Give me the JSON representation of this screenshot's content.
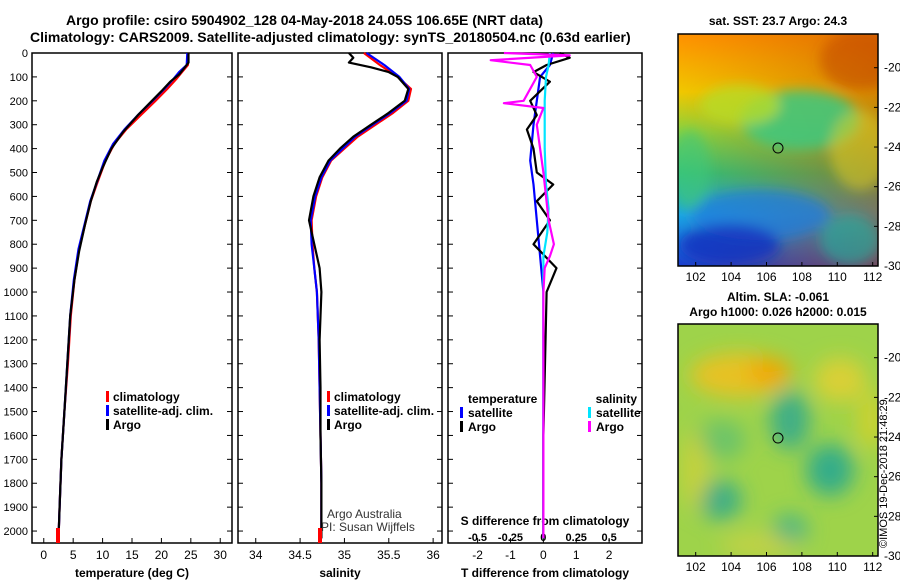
{
  "titles": {
    "line1": "Argo profile: csiro 5904902_128 04-May-2018 24.05S 106.65E (NRT data)",
    "line2": "Climatology: CARS2009. Satellite-adjusted climatology: synTS_20180504.nc (0.63d earlier)"
  },
  "colors": {
    "climatology": "#ff0000",
    "satellite": "#0000ff",
    "argo": "#000000",
    "satellite_salt": "#00e5ff",
    "argo_salt": "#ff00ff"
  },
  "depth_axis": {
    "min": 0,
    "max": 2050,
    "ticks": [
      0,
      100,
      200,
      300,
      400,
      500,
      600,
      700,
      800,
      900,
      1000,
      1100,
      1200,
      1300,
      1400,
      1500,
      1600,
      1700,
      1800,
      1900,
      2000
    ]
  },
  "chart_data": [
    {
      "type": "line",
      "name": "temperature-profile",
      "xlabel": "temperature (deg C)",
      "ylabel": "depth",
      "xlim": [
        -2,
        32
      ],
      "ylim": [
        2050,
        0
      ],
      "xticks": [
        "0",
        "5",
        "10",
        "15",
        "20",
        "25",
        "30"
      ],
      "xtick_values": [
        0,
        5,
        10,
        15,
        20,
        25,
        30
      ],
      "legend": [
        "climatology",
        "satellite-adj. clim.",
        "Argo"
      ],
      "series": [
        {
          "name": "climatology",
          "color": "#ff0000",
          "points": [
            [
              24.6,
              0
            ],
            [
              24.5,
              50
            ],
            [
              23.5,
              80
            ],
            [
              22.5,
              110
            ],
            [
              21,
              150
            ],
            [
              19,
              200
            ],
            [
              16.5,
              260
            ],
            [
              14,
              320
            ],
            [
              12,
              380
            ],
            [
              10.5,
              450
            ],
            [
              9,
              550
            ],
            [
              8,
              620
            ],
            [
              7,
              720
            ],
            [
              6,
              820
            ],
            [
              5.2,
              950
            ],
            [
              4.6,
              1100
            ],
            [
              4.1,
              1300
            ],
            [
              3.5,
              1500
            ],
            [
              3,
              1700
            ],
            [
              2.7,
              1900
            ],
            [
              2.5,
              2030
            ]
          ]
        },
        {
          "name": "satellite-adj. clim.",
          "color": "#0000ff",
          "points": [
            [
              24.4,
              0
            ],
            [
              24.3,
              50
            ],
            [
              23,
              80
            ],
            [
              22,
              110
            ],
            [
              20.5,
              150
            ],
            [
              18.5,
              200
            ],
            [
              16,
              260
            ],
            [
              13.7,
              320
            ],
            [
              11.8,
              380
            ],
            [
              10.3,
              450
            ],
            [
              8.9,
              550
            ],
            [
              7.9,
              620
            ],
            [
              6.9,
              720
            ],
            [
              5.9,
              820
            ],
            [
              5.1,
              950
            ],
            [
              4.5,
              1100
            ],
            [
              4,
              1300
            ],
            [
              3.5,
              1500
            ],
            [
              3,
              1700
            ],
            [
              2.7,
              1900
            ],
            [
              2.5,
              2030
            ]
          ]
        },
        {
          "name": "Argo",
          "color": "#000000",
          "points": [
            [
              24.6,
              0
            ],
            [
              24.6,
              40
            ],
            [
              24,
              60
            ],
            [
              23,
              90
            ],
            [
              21.5,
              120
            ],
            [
              20,
              160
            ],
            [
              18,
              210
            ],
            [
              16,
              260
            ],
            [
              13.5,
              330
            ],
            [
              11.5,
              400
            ],
            [
              10,
              480
            ],
            [
              9,
              540
            ],
            [
              8,
              620
            ],
            [
              7,
              720
            ],
            [
              6,
              830
            ],
            [
              5.2,
              950
            ],
            [
              4.5,
              1100
            ],
            [
              4,
              1300
            ],
            [
              3.5,
              1500
            ],
            [
              3,
              1700
            ],
            [
              2.7,
              1900
            ],
            [
              2.5,
              2030
            ]
          ]
        }
      ]
    },
    {
      "type": "line",
      "name": "salinity-profile",
      "xlabel": "salinity",
      "ylabel": "depth",
      "xlim": [
        33.8,
        36.1
      ],
      "ylim": [
        2050,
        0
      ],
      "xticks": [
        "34",
        "34.5",
        "35",
        "35.5",
        "36"
      ],
      "xtick_values": [
        34,
        34.5,
        35,
        35.5,
        36
      ],
      "legend": [
        "climatology",
        "satellite-adj. clim.",
        "Argo"
      ],
      "series": [
        {
          "name": "climatology",
          "color": "#ff0000",
          "points": [
            [
              35.22,
              0
            ],
            [
              35.4,
              50
            ],
            [
              35.6,
              100
            ],
            [
              35.75,
              150
            ],
            [
              35.72,
              200
            ],
            [
              35.55,
              250
            ],
            [
              35.35,
              300
            ],
            [
              35.15,
              350
            ],
            [
              35,
              400
            ],
            [
              34.85,
              450
            ],
            [
              34.75,
              520
            ],
            [
              34.68,
              600
            ],
            [
              34.63,
              700
            ],
            [
              34.64,
              800
            ],
            [
              34.66,
              900
            ],
            [
              34.69,
              1000
            ],
            [
              34.71,
              1200
            ],
            [
              34.72,
              1400
            ],
            [
              34.73,
              1600
            ],
            [
              34.74,
              1800
            ],
            [
              34.74,
              2030
            ]
          ]
        },
        {
          "name": "satellite-adj. clim.",
          "color": "#0000ff",
          "points": [
            [
              35.25,
              0
            ],
            [
              35.45,
              50
            ],
            [
              35.62,
              100
            ],
            [
              35.73,
              150
            ],
            [
              35.7,
              200
            ],
            [
              35.52,
              250
            ],
            [
              35.32,
              300
            ],
            [
              35.12,
              350
            ],
            [
              34.98,
              400
            ],
            [
              34.84,
              450
            ],
            [
              34.74,
              520
            ],
            [
              34.67,
              600
            ],
            [
              34.62,
              700
            ],
            [
              34.63,
              800
            ],
            [
              34.66,
              900
            ],
            [
              34.69,
              1000
            ],
            [
              34.71,
              1200
            ],
            [
              34.72,
              1400
            ],
            [
              34.73,
              1600
            ],
            [
              34.74,
              1800
            ],
            [
              34.74,
              2030
            ]
          ]
        },
        {
          "name": "Argo",
          "color": "#000000",
          "points": [
            [
              35.05,
              0
            ],
            [
              35.1,
              20
            ],
            [
              35.05,
              40
            ],
            [
              35.3,
              60
            ],
            [
              35.5,
              80
            ],
            [
              35.6,
              100
            ],
            [
              35.72,
              150
            ],
            [
              35.68,
              200
            ],
            [
              35.5,
              250
            ],
            [
              35.3,
              300
            ],
            [
              35.1,
              350
            ],
            [
              34.95,
              400
            ],
            [
              34.82,
              450
            ],
            [
              34.72,
              520
            ],
            [
              34.65,
              600
            ],
            [
              34.6,
              700
            ],
            [
              34.66,
              800
            ],
            [
              34.72,
              900
            ],
            [
              34.74,
              1000
            ],
            [
              34.73,
              1100
            ],
            [
              34.72,
              1200
            ],
            [
              34.73,
              1400
            ],
            [
              34.73,
              1600
            ],
            [
              34.74,
              1800
            ],
            [
              34.74,
              2030
            ]
          ]
        }
      ]
    },
    {
      "type": "line",
      "name": "difference-profile",
      "xlabel": "T difference from climatology",
      "x2label": "S difference from climatology",
      "ylabel": "depth",
      "xlim": [
        -2.9,
        3.0
      ],
      "ylim": [
        2050,
        0
      ],
      "xticks": [
        "-2",
        "-1",
        "0",
        "1",
        "2"
      ],
      "xtick_values": [
        -2,
        -1,
        0,
        1,
        2
      ],
      "x2ticks": [
        "-0.5",
        "-0.25",
        "0",
        "0.25",
        "0.5"
      ],
      "x2tick_values": [
        -0.5,
        -0.25,
        0,
        0.25,
        0.5
      ],
      "legend_temperature": {
        "title": "temperature",
        "items": [
          "satellite",
          "Argo"
        ]
      },
      "legend_salinity": {
        "title": "salinity",
        "items": [
          "satellite",
          "Argo"
        ]
      },
      "series": [
        {
          "name": "T satellite",
          "color": "#0000ff",
          "points": [
            [
              0.3,
              0
            ],
            [
              0.2,
              50
            ],
            [
              -0.1,
              100
            ],
            [
              -0.2,
              200
            ],
            [
              -0.3,
              300
            ],
            [
              -0.4,
              450
            ],
            [
              -0.3,
              550
            ],
            [
              -0.2,
              700
            ],
            [
              -0.1,
              850
            ],
            [
              0,
              1000
            ],
            [
              0,
              1300
            ],
            [
              0,
              1600
            ],
            [
              0,
              2030
            ]
          ]
        },
        {
          "name": "T Argo",
          "color": "#000000",
          "points": [
            [
              0.5,
              0
            ],
            [
              0.8,
              20
            ],
            [
              0.1,
              50
            ],
            [
              -0.3,
              80
            ],
            [
              0.2,
              120
            ],
            [
              -0.4,
              200
            ],
            [
              -0.2,
              260
            ],
            [
              -0.5,
              320
            ],
            [
              -0.3,
              400
            ],
            [
              -0.2,
              500
            ],
            [
              0.3,
              550
            ],
            [
              -0.2,
              620
            ],
            [
              0.2,
              700
            ],
            [
              -0.3,
              800
            ],
            [
              0.4,
              900
            ],
            [
              0.1,
              1000
            ],
            [
              0.05,
              1300
            ],
            [
              0,
              1600
            ],
            [
              0,
              2030
            ]
          ]
        },
        {
          "name": "S satellite",
          "color": "#00e5ff",
          "points": [
            [
              0.05,
              0
            ],
            [
              0.04,
              50
            ],
            [
              0.02,
              100
            ],
            [
              0.01,
              200
            ],
            [
              0.01,
              400
            ],
            [
              0.02,
              550
            ],
            [
              0.04,
              650
            ],
            [
              0.03,
              750
            ],
            [
              0,
              850
            ],
            [
              0,
              1000
            ],
            [
              0,
              1300
            ],
            [
              0,
              1600
            ],
            [
              0,
              2030
            ]
          ]
        },
        {
          "name": "S Argo",
          "color": "#ff00ff",
          "points": [
            [
              -0.3,
              0
            ],
            [
              0.2,
              10
            ],
            [
              -0.4,
              30
            ],
            [
              -0.1,
              50
            ],
            [
              -0.05,
              100
            ],
            [
              -0.15,
              200
            ],
            [
              -0.3,
              210
            ],
            [
              0,
              230
            ],
            [
              -0.05,
              300
            ],
            [
              0,
              500
            ],
            [
              0.04,
              700
            ],
            [
              0.08,
              800
            ],
            [
              0.05,
              850
            ],
            [
              0.01,
              900
            ],
            [
              0,
              1000
            ],
            [
              0,
              1300
            ],
            [
              0,
              1600
            ],
            [
              0,
              2030
            ]
          ]
        }
      ]
    },
    {
      "type": "heatmap",
      "name": "sst-map",
      "title": "sat. SST: 23.7 Argo: 24.3",
      "xlim": [
        101,
        112.3
      ],
      "ylim": [
        -30,
        -18.3
      ],
      "xticks": [
        "102",
        "104",
        "106",
        "108",
        "110",
        "112"
      ],
      "xtick_values": [
        102,
        104,
        106,
        108,
        110,
        112
      ],
      "yticks": [
        "-20",
        "-22",
        "-24",
        "-26",
        "-28",
        "-30"
      ],
      "ytick_values": [
        -20,
        -22,
        -24,
        -26,
        -28,
        -30
      ],
      "marker": {
        "lon": 106.65,
        "lat": -24.05
      }
    },
    {
      "type": "heatmap",
      "name": "sla-map",
      "title1": "Altim. SLA: -0.061",
      "title2": "Argo h1000: 0.026 h2000: 0.015",
      "xlim": [
        101,
        112.3
      ],
      "ylim": [
        -30,
        -18.3
      ],
      "xticks": [
        "102",
        "104",
        "106",
        "108",
        "110",
        "112"
      ],
      "xtick_values": [
        102,
        104,
        106,
        108,
        110,
        112
      ],
      "yticks": [
        "-20",
        "-22",
        "-24",
        "-26",
        "-28",
        "-30"
      ],
      "ytick_values": [
        -20,
        -22,
        -24,
        -26,
        -28,
        -30
      ],
      "marker": {
        "lon": 106.65,
        "lat": -24.05
      }
    }
  ],
  "credit": {
    "line1": "Argo Australia",
    "line2": "PI: Susan Wijffels"
  },
  "stamp": "©IMOS 19-Dec-2018 21:48:29"
}
